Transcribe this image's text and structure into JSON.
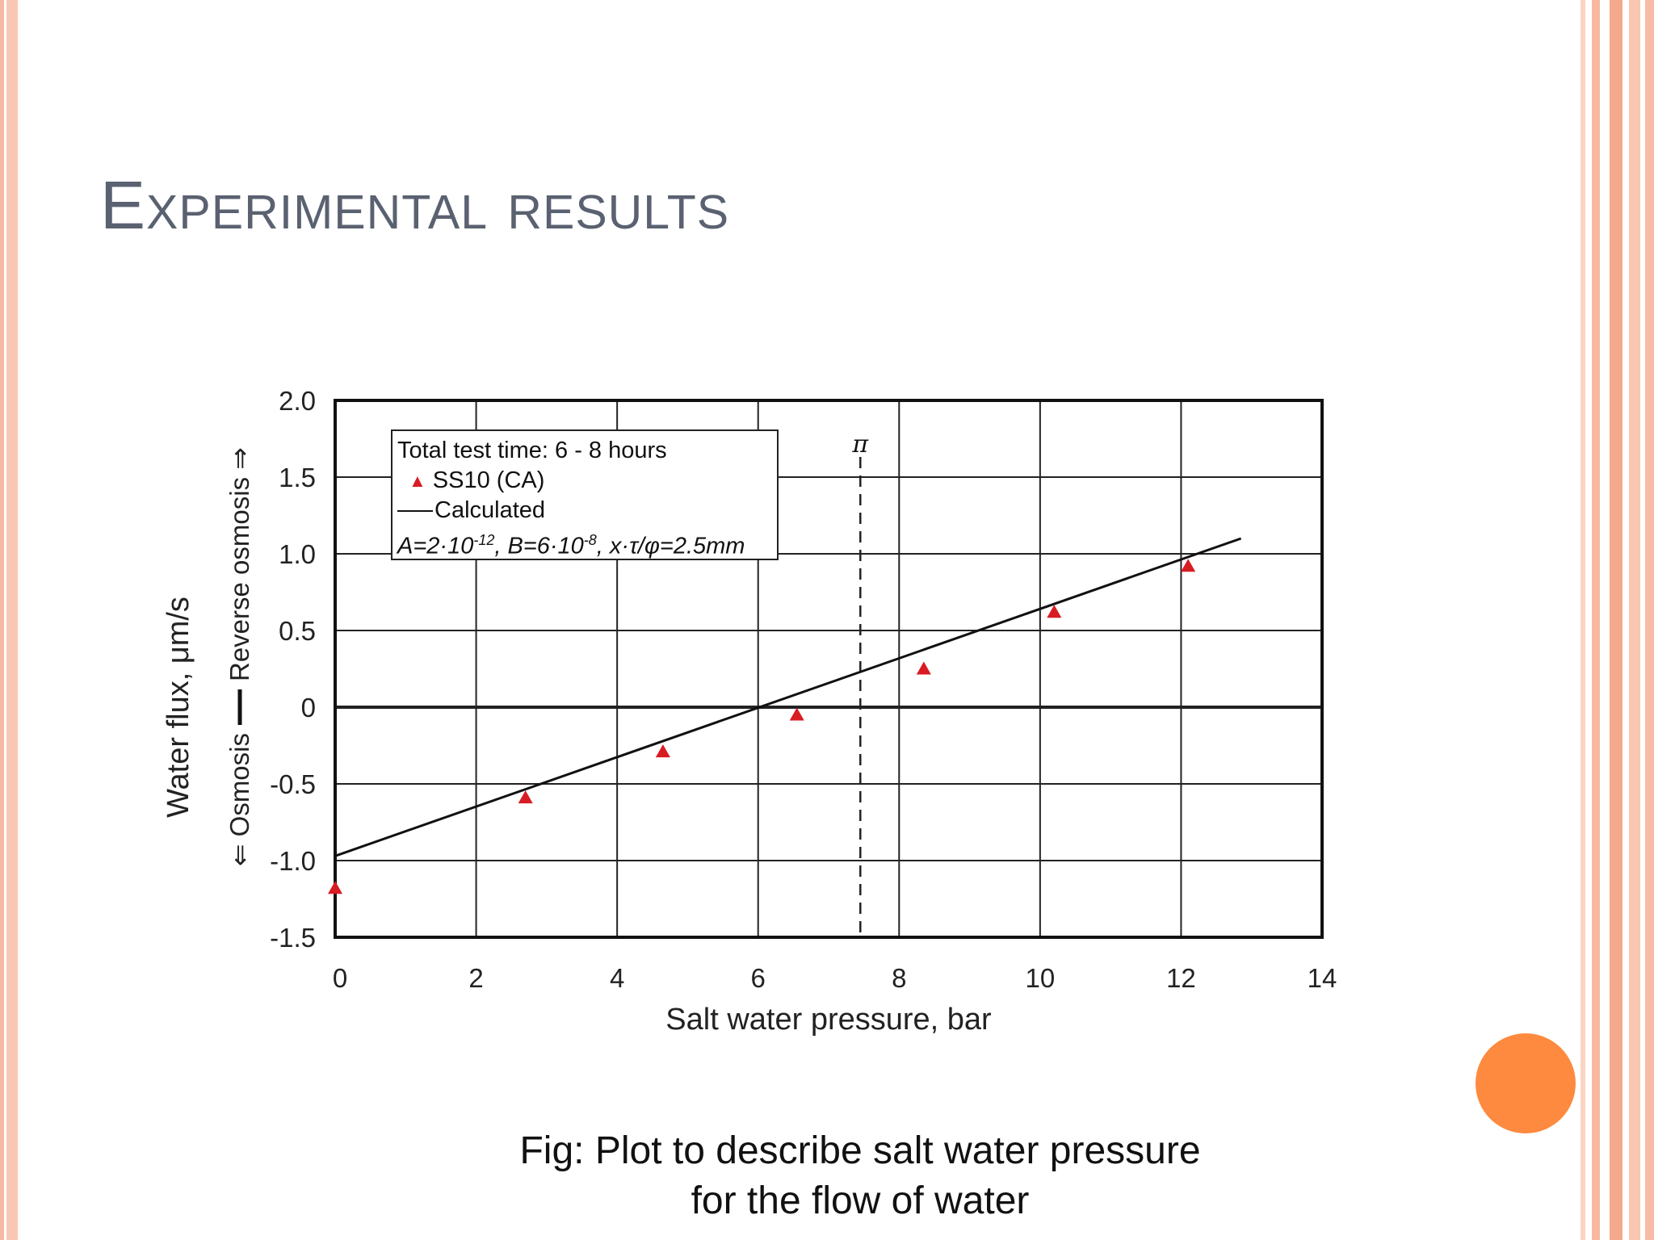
{
  "slide": {
    "title": "Experimental results",
    "caption_lines": [
      "Fig: Plot to describe salt water pressure",
      "for the flow of water"
    ]
  },
  "chart_data": {
    "type": "scatter",
    "xlabel": "Salt water pressure, bar",
    "ylabel": "Water flux, μm/s",
    "ylabel_upper": "Reverse osmosis ⇒",
    "ylabel_lower": "⇐ Osmosis",
    "xlim": [
      0,
      14
    ],
    "ylim": [
      -1.5,
      2.0
    ],
    "x_ticks": [
      0,
      2,
      4,
      6,
      8,
      10,
      12,
      14
    ],
    "x_tick_labels": [
      "0",
      "2",
      "4",
      "6",
      "8",
      "10",
      "12",
      "14"
    ],
    "y_ticks": [
      2.0,
      1.5,
      1.0,
      0.5,
      0,
      -0.5,
      -1.0,
      -1.5
    ],
    "y_tick_labels": [
      "2.0",
      "1.5",
      "1.0",
      "0.5",
      "0",
      "-0.5",
      "-1.0",
      "-1.5"
    ],
    "grid": true,
    "legend_placement": "top-left",
    "legend": {
      "header": "Total test time: 6 - 8 hours",
      "entries": [
        "SS10 (CA)",
        "Calculated"
      ],
      "params": {
        "a": "A=2·10",
        "a_exp": "-12",
        "b": ", B=6·10",
        "b_exp": "-8",
        "c": ", x·τ/φ=2.5mm"
      }
    },
    "series": [
      {
        "name": "SS10 (CA)",
        "kind": "scatter",
        "marker": "triangle",
        "color": "#d81c24",
        "x": [
          0.0,
          2.7,
          4.65,
          6.55,
          8.35,
          10.2,
          12.1
        ],
        "y": [
          -1.18,
          -0.59,
          -0.29,
          -0.05,
          0.25,
          0.62,
          0.92
        ]
      },
      {
        "name": "Calculated",
        "kind": "line",
        "color": "#111111",
        "x": [
          0,
          12.85
        ],
        "y": [
          -0.97,
          1.1
        ]
      }
    ],
    "annotations": [
      {
        "kind": "vline",
        "x": 7.45,
        "label": "π",
        "style": "dashed"
      }
    ]
  },
  "colors": {
    "accent_dot": "#fd8a3e",
    "title": "#5a6170",
    "marker": "#d81c24"
  }
}
